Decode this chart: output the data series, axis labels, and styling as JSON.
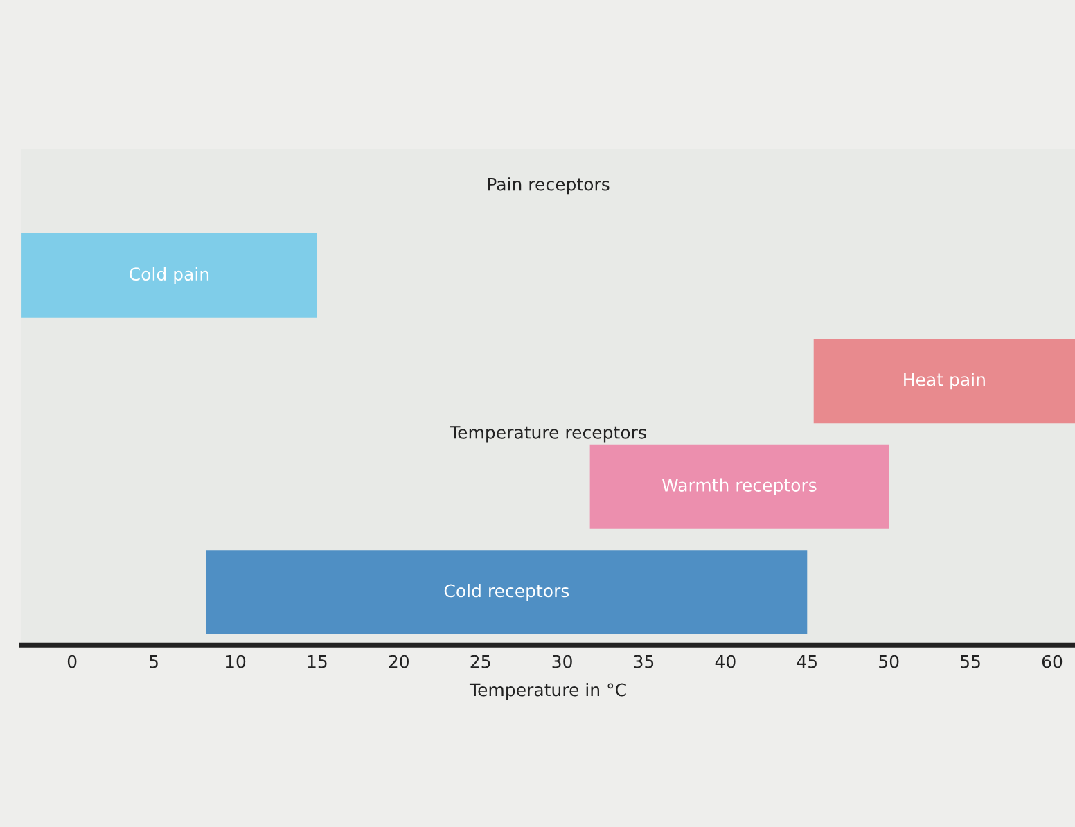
{
  "chart_data": {
    "type": "bar",
    "orientation": "horizontal",
    "xlabel": "Temperature in °C",
    "categories": [
      "Cold pain",
      "Heat pain",
      "Warmth receptors",
      "Cold receptors"
    ],
    "annotations": [
      "Pain receptors",
      "Temperature receptors"
    ],
    "values": [
      18.1,
      16.0,
      18.3,
      36.8
    ],
    "base": [
      -3.1,
      45.4,
      31.7,
      8.2
    ],
    "colors": [
      "#7fcde9",
      "#e88a8e",
      "#ec8fae",
      "#4f8fc4"
    ],
    "xlim": [
      -3.1,
      61.4
    ],
    "xticks": [
      0,
      5,
      10,
      15,
      20,
      25,
      30,
      35,
      40,
      45,
      50,
      55,
      60
    ],
    "grid": false,
    "legend": false
  }
}
